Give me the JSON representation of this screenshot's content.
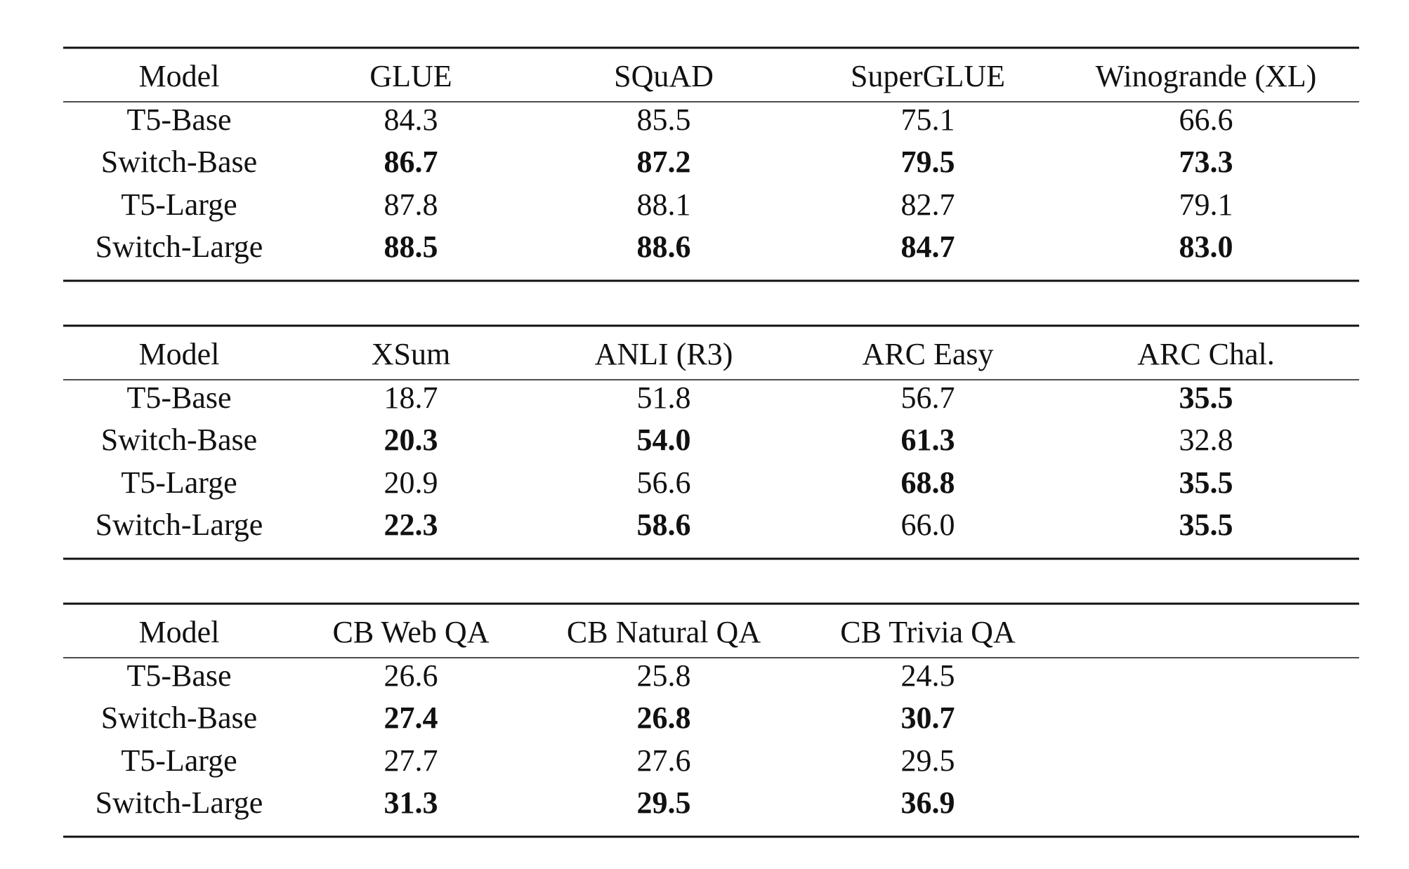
{
  "tables": [
    {
      "header": [
        "Model",
        "GLUE",
        "SQuAD",
        "SuperGLUE",
        "Winogrande (XL)"
      ],
      "rows": [
        {
          "model": "T5-Base",
          "values": [
            "84.3",
            "85.5",
            "75.1",
            "66.6"
          ],
          "bold": [
            false,
            false,
            false,
            false
          ]
        },
        {
          "model": "Switch-Base",
          "values": [
            "86.7",
            "87.2",
            "79.5",
            "73.3"
          ],
          "bold": [
            true,
            true,
            true,
            true
          ]
        },
        {
          "model": "T5-Large",
          "values": [
            "87.8",
            "88.1",
            "82.7",
            "79.1"
          ],
          "bold": [
            false,
            false,
            false,
            false
          ]
        },
        {
          "model": "Switch-Large",
          "values": [
            "88.5",
            "88.6",
            "84.7",
            "83.0"
          ],
          "bold": [
            true,
            true,
            true,
            true
          ]
        }
      ]
    },
    {
      "header": [
        "Model",
        "XSum",
        "ANLI (R3)",
        "ARC Easy",
        "ARC Chal."
      ],
      "rows": [
        {
          "model": "T5-Base",
          "values": [
            "18.7",
            "51.8",
            "56.7",
            "35.5"
          ],
          "bold": [
            false,
            false,
            false,
            true
          ]
        },
        {
          "model": "Switch-Base",
          "values": [
            "20.3",
            "54.0",
            "61.3",
            "32.8"
          ],
          "bold": [
            true,
            true,
            true,
            false
          ]
        },
        {
          "model": "T5-Large",
          "values": [
            "20.9",
            "56.6",
            "68.8",
            "35.5"
          ],
          "bold": [
            false,
            false,
            true,
            true
          ]
        },
        {
          "model": "Switch-Large",
          "values": [
            "22.3",
            "58.6",
            "66.0",
            "35.5"
          ],
          "bold": [
            true,
            true,
            false,
            true
          ]
        }
      ]
    },
    {
      "header": [
        "Model",
        "CB Web QA",
        "CB Natural QA",
        "CB Trivia QA"
      ],
      "rows": [
        {
          "model": "T5-Base",
          "values": [
            "26.6",
            "25.8",
            "24.5"
          ],
          "bold": [
            false,
            false,
            false
          ]
        },
        {
          "model": "Switch-Base",
          "values": [
            "27.4",
            "26.8",
            "30.7"
          ],
          "bold": [
            true,
            true,
            true
          ]
        },
        {
          "model": "T5-Large",
          "values": [
            "27.7",
            "27.6",
            "29.5"
          ],
          "bold": [
            false,
            false,
            false
          ]
        },
        {
          "model": "Switch-Large",
          "values": [
            "31.3",
            "29.5",
            "36.9"
          ],
          "bold": [
            true,
            true,
            true
          ]
        }
      ]
    }
  ]
}
